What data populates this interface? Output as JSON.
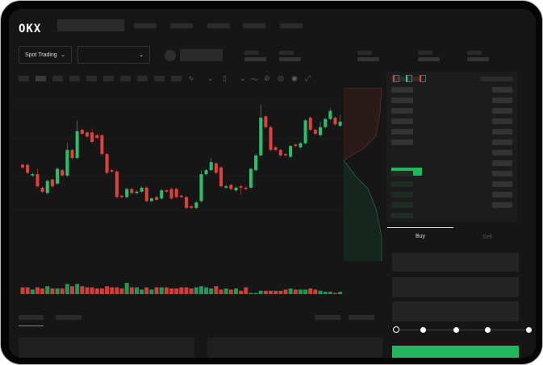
{
  "header": {
    "logo": "OKX",
    "nav_items": 5
  },
  "market_bar": {
    "mode_label": "Spot Trading",
    "mode_icon": "chevron-down-icon",
    "pair_icon": "chevron-down-icon"
  },
  "trade_panel": {
    "tabs": [
      {
        "label": "Buy",
        "active": true
      },
      {
        "label": "Sell",
        "active": false
      }
    ],
    "slider_percent": 0,
    "buy_color": "#22b65f"
  },
  "colors": {
    "up": "#24c26a",
    "down": "#e0413f",
    "background": "#161616"
  },
  "chart_data": {
    "type": "candlestick",
    "candles": [
      [
        50,
        48
      ],
      [
        50,
        44
      ],
      [
        42,
        43
      ],
      [
        43,
        34,
        47,
        33
      ],
      [
        33,
        30
      ],
      [
        29,
        38
      ],
      [
        39,
        34
      ],
      [
        36,
        47
      ],
      [
        46,
        42
      ],
      [
        42,
        61,
        66,
        41
      ],
      [
        61,
        55
      ],
      [
        55,
        75,
        83,
        54
      ],
      [
        76,
        73
      ],
      [
        74,
        71
      ],
      [
        74,
        67,
        77,
        66
      ],
      [
        72,
        70
      ],
      [
        72,
        58
      ],
      [
        58,
        44
      ],
      [
        46,
        45
      ],
      [
        45,
        26
      ],
      [
        27,
        26
      ],
      [
        26,
        32
      ],
      [
        32,
        29
      ],
      [
        29,
        30
      ],
      [
        30,
        33
      ],
      [
        33,
        23
      ],
      [
        23,
        25
      ],
      [
        26,
        24
      ],
      [
        25,
        31
      ],
      [
        31,
        30
      ],
      [
        32,
        25
      ],
      [
        32,
        26
      ],
      [
        27,
        26
      ],
      [
        26,
        18
      ],
      [
        19,
        18
      ],
      [
        18,
        22
      ],
      [
        23,
        43,
        46,
        22
      ],
      [
        43,
        46
      ],
      [
        46,
        52,
        55,
        45
      ],
      [
        51,
        44
      ],
      [
        48,
        34
      ],
      [
        33,
        34
      ],
      [
        35,
        32
      ],
      [
        31,
        33
      ],
      [
        34,
        33,
        35,
        28
      ],
      [
        33,
        32
      ],
      [
        33,
        47
      ],
      [
        46,
        57
      ],
      [
        57,
        85,
        95,
        56
      ],
      [
        86,
        78
      ],
      [
        78,
        61
      ],
      [
        63,
        61
      ],
      [
        61,
        57
      ],
      [
        58,
        57
      ],
      [
        56,
        64
      ],
      [
        65,
        64
      ],
      [
        63,
        66
      ],
      [
        66,
        83
      ],
      [
        85,
        76
      ],
      [
        76,
        73
      ],
      [
        72,
        78,
        82,
        71
      ],
      [
        78,
        84
      ],
      [
        84,
        90,
        92,
        83
      ],
      [
        85,
        80
      ],
      [
        79,
        82,
        87,
        78
      ]
    ],
    "volumes": [
      6,
      6,
      4,
      6,
      5,
      7,
      5,
      5,
      5,
      9,
      7,
      9,
      7,
      6,
      6,
      5,
      5,
      7,
      6,
      6,
      5,
      10,
      6,
      6,
      4,
      6,
      4,
      6,
      6,
      6,
      5,
      5,
      6,
      6,
      5,
      6,
      7,
      6,
      5,
      7,
      4,
      5,
      4,
      5,
      3,
      6,
      1,
      1,
      3,
      3,
      3,
      3,
      3,
      4,
      5,
      4,
      4,
      4,
      5,
      4,
      3,
      2,
      2,
      1,
      2
    ]
  }
}
